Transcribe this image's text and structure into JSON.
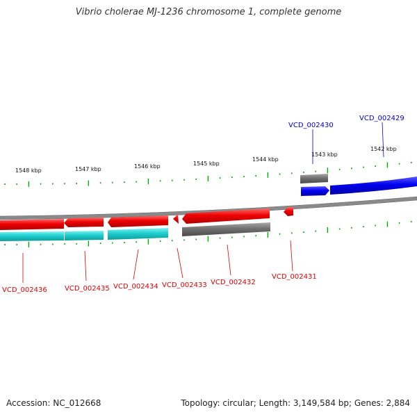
{
  "title": "Vibrio cholerae MJ-1236 chromosome 1, complete genome",
  "footer": {
    "accession": "Accession: NC_012668",
    "summary": "Topology: circular; Length: 3,149,584 bp; Genes: 2,884"
  },
  "colors": {
    "forward_cds": "#0000ee",
    "reverse_cds": "#ee0000",
    "reverse_rna": "#1fcfcf",
    "other_feature": "#707070",
    "backbone": "#8a8a8a",
    "tick": "#00aa00"
  },
  "kbp_ticks": [
    "1548 kbp",
    "1547 kbp",
    "1546 kbp",
    "1545 kbp",
    "1544 kbp",
    "1543 kbp",
    "1542 kbp"
  ],
  "gene_labels": {
    "top": [
      "VCD_002430",
      "VCD_002429"
    ],
    "bottom": [
      "VCD_002436",
      "VCD_002435",
      "VCD_002434",
      "VCD_002433",
      "VCD_002432",
      "VCD_002431"
    ]
  }
}
